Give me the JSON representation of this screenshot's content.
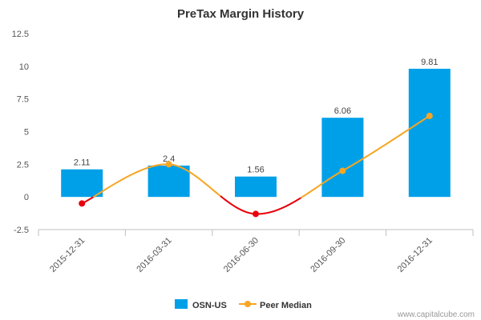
{
  "chart_data": {
    "type": "bar",
    "title": "PreTax Margin History",
    "categories": [
      "2015-12-31",
      "2016-03-31",
      "2016-06-30",
      "2016-09-30",
      "2016-12-31"
    ],
    "series": [
      {
        "name": "OSN-US",
        "type": "bar",
        "color": "#00a0e9",
        "values": [
          2.11,
          2.4,
          1.56,
          6.06,
          9.81
        ],
        "data_labels": [
          "2.11",
          "2.4",
          "1.56",
          "6.06",
          "9.81"
        ]
      },
      {
        "name": "Peer Median",
        "type": "line",
        "color": "#f5a623",
        "negative_color": "#e8000b",
        "values": [
          -0.5,
          2.5,
          -1.3,
          2.0,
          6.2
        ]
      }
    ],
    "ylim": [
      -2.5,
      12.5
    ],
    "yticks": [
      "12.5",
      "10",
      "7.5",
      "5",
      "2.5",
      "0",
      "-2.5"
    ],
    "grid": false,
    "legend": "bottom"
  },
  "credit": "www.capitalcube.com"
}
